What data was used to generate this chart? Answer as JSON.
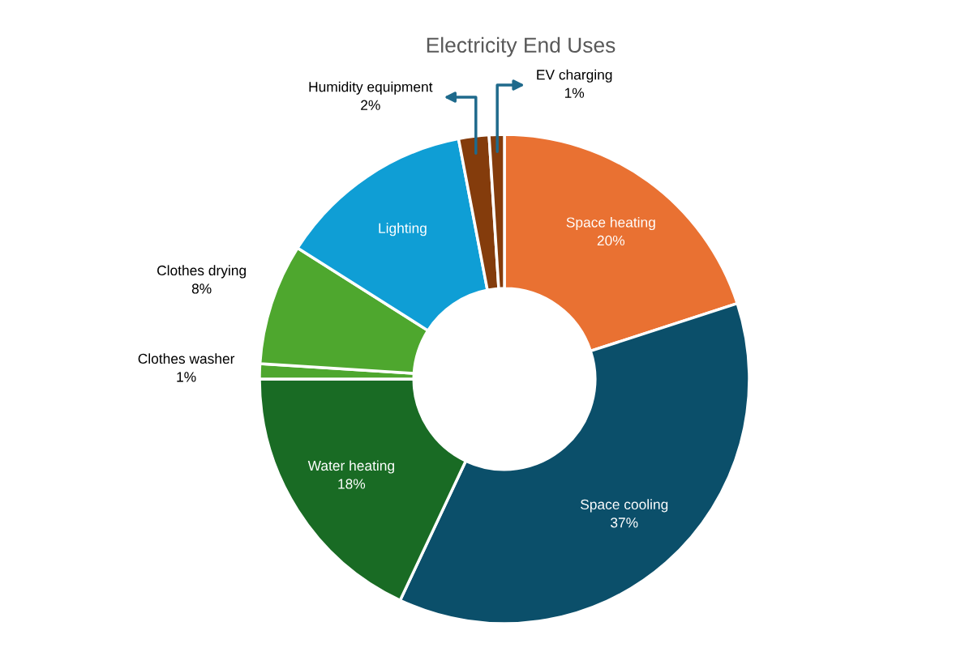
{
  "chart_data": {
    "type": "donut",
    "title": "Electricity End Uses",
    "categories": [
      "Space heating",
      "Space cooling",
      "Water heating",
      "Clothes washer",
      "Clothes drying",
      "Lighting",
      "Humidity equipment",
      "EV charging"
    ],
    "values": [
      20,
      37,
      18,
      1,
      8,
      13,
      2,
      1
    ],
    "value_labels": [
      "20%",
      "37%",
      "18%",
      "1%",
      "8%",
      null,
      "2%",
      "1%"
    ],
    "colors": [
      "#e97132",
      "#0b4f6a",
      "#196b24",
      "#4ea72e",
      "#4ea72e",
      "#0f9ed5",
      "#843c0c",
      "#843c0c"
    ]
  }
}
